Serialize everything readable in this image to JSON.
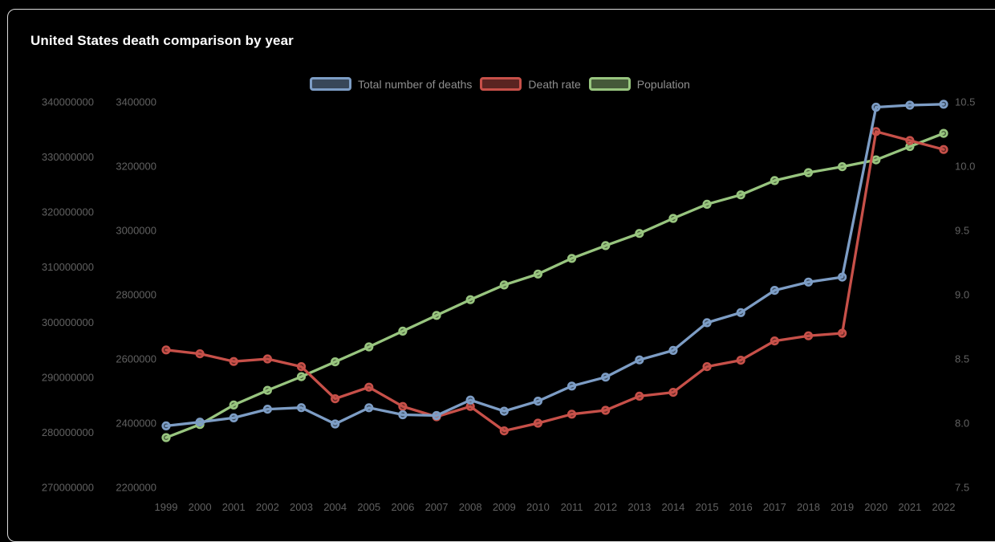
{
  "window": {
    "background": "#000000",
    "card_border": "#dcdcdc"
  },
  "header": {
    "title": "United States death comparison by year"
  },
  "chart_data": {
    "type": "line",
    "title": "United States death comparison by year",
    "legend_position": "top",
    "grid": false,
    "background": "#000000",
    "x": [
      1999,
      2000,
      2001,
      2002,
      2003,
      2004,
      2005,
      2006,
      2007,
      2008,
      2009,
      2010,
      2011,
      2012,
      2013,
      2014,
      2015,
      2016,
      2017,
      2018,
      2019,
      2020,
      2021,
      2022
    ],
    "x_tick_labels": [
      "1999",
      "2000",
      "2001",
      "2002",
      "2003",
      "2004",
      "2005",
      "2006",
      "2007",
      "2008",
      "2009",
      "2010",
      "2011",
      "2012",
      "2013",
      "2014",
      "2015",
      "2016",
      "2017",
      "2018",
      "2019",
      "2020",
      "2021",
      "2022"
    ],
    "series": [
      {
        "name": "Total number of deaths",
        "color": "#7d9dc5",
        "axis": "deaths",
        "values": [
          2391399,
          2403351,
          2416425,
          2443387,
          2448288,
          2397615,
          2448017,
          2426264,
          2423712,
          2471984,
          2437163,
          2468435,
          2515458,
          2543279,
          2596993,
          2626418,
          2712630,
          2744248,
          2813503,
          2839205,
          2854838,
          3383729,
          3390000,
          3393000
        ]
      },
      {
        "name": "Death rate",
        "color": "#c75049",
        "axis": "rate",
        "values": [
          8.57,
          8.54,
          8.48,
          8.5,
          8.44,
          8.19,
          8.28,
          8.13,
          8.05,
          8.13,
          7.94,
          8.0,
          8.07,
          8.1,
          8.21,
          8.24,
          8.44,
          8.49,
          8.64,
          8.68,
          8.7,
          10.27,
          10.2,
          10.13
        ]
      },
      {
        "name": "Population",
        "color": "#98c57f",
        "axis": "population",
        "values": [
          279040168,
          281421906,
          284968955,
          287625193,
          290107933,
          292805298,
          295516599,
          298379912,
          301231207,
          304093966,
          306771529,
          308745538,
          311591917,
          313914040,
          316128839,
          318857056,
          321418820,
          323127513,
          325719178,
          327167434,
          328239523,
          329484123,
          331900000,
          334300000
        ]
      }
    ],
    "axes": {
      "population": {
        "side": "left_outer",
        "min": 270000000,
        "max": 340000000,
        "tick_labels": [
          "340000000",
          "330000000",
          "320000000",
          "310000000",
          "300000000",
          "290000000",
          "280000000",
          "270000000"
        ]
      },
      "deaths": {
        "side": "left_inner",
        "min": 2200000,
        "max": 3400000,
        "tick_labels": [
          "3400000",
          "3200000",
          "3000000",
          "2800000",
          "2600000",
          "2400000",
          "2200000"
        ]
      },
      "rate": {
        "side": "right",
        "min": 7.5,
        "max": 10.5,
        "tick_labels": [
          "10.5",
          "10.0",
          "9.5",
          "9.0",
          "8.5",
          "8.0",
          "7.5"
        ]
      }
    }
  }
}
